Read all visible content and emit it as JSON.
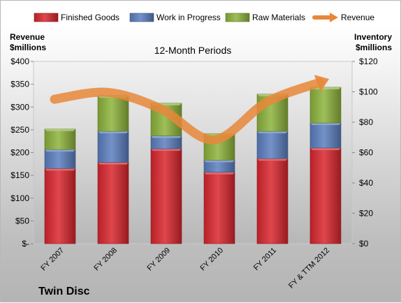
{
  "chart_data": {
    "type": "bar",
    "stacked": true,
    "title": "12-Month Periods",
    "company": "Twin Disc",
    "left_axis_label": [
      "Revenue",
      "$millions"
    ],
    "right_axis_label": [
      "Inventory",
      "$millions"
    ],
    "categories": [
      "FY 2007",
      "FY 2008",
      "FY 2009",
      "FY 2010",
      "FY 2011",
      "FY & TTM 2012"
    ],
    "left_ticks": [
      "$-",
      "$50",
      "$100",
      "$150",
      "$200",
      "$250",
      "$300",
      "$350",
      "$400"
    ],
    "right_ticks": [
      "$0",
      "$20",
      "$40",
      "$60",
      "$80",
      "$100",
      "$120"
    ],
    "left_ylim": [
      0,
      400
    ],
    "right_ylim": [
      0,
      120
    ],
    "series": [
      {
        "name": "Finished Goods",
        "axis": "right",
        "color": "#d9262e",
        "values": [
          49.5,
          53.5,
          62.5,
          47,
          56,
          63
        ]
      },
      {
        "name": "Work in Progress",
        "axis": "right",
        "color": "#5b7fbf",
        "values": [
          12.5,
          20.5,
          8.5,
          8,
          18,
          16.5
        ]
      },
      {
        "name": "Raw Materials",
        "axis": "right",
        "color": "#8db33c",
        "values": [
          13.5,
          23.5,
          21.5,
          17.5,
          24.5,
          23.5
        ]
      }
    ],
    "line_series": {
      "name": "Revenue",
      "axis": "left",
      "color": "#e8873a",
      "values": [
        317,
        332,
        296,
        228,
        311,
        354
      ]
    },
    "grid": false,
    "legend_position": "top"
  }
}
